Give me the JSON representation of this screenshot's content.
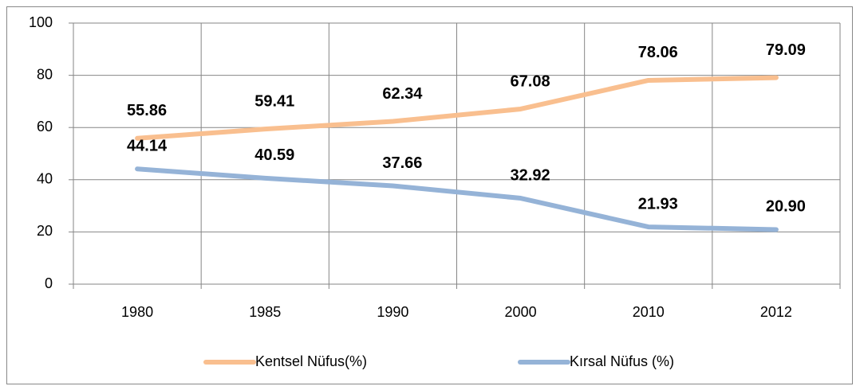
{
  "chart_data": {
    "type": "line",
    "categories": [
      "1980",
      "1985",
      "1990",
      "2000",
      "2010",
      "2012"
    ],
    "series": [
      {
        "name": "Kentsel Nüfus(%)",
        "color": "#f9bf8f",
        "values": [
          55.86,
          59.41,
          62.34,
          67.08,
          78.06,
          79.09
        ],
        "value_labels": [
          "55.86",
          "59.41",
          "62.34",
          "67.08",
          "78.06",
          "79.09"
        ]
      },
      {
        "name": "Kırsal Nüfus (%)",
        "color": "#95b3d7",
        "values": [
          44.14,
          40.59,
          37.66,
          32.92,
          21.93,
          20.9
        ],
        "value_labels": [
          "44.14",
          "40.59",
          "37.66",
          "32.92",
          "21.93",
          "20.90"
        ]
      }
    ],
    "ylim": [
      0,
      100
    ],
    "yticks": [
      0,
      20,
      40,
      60,
      80,
      100
    ],
    "grid": true,
    "legend": "bottom"
  }
}
